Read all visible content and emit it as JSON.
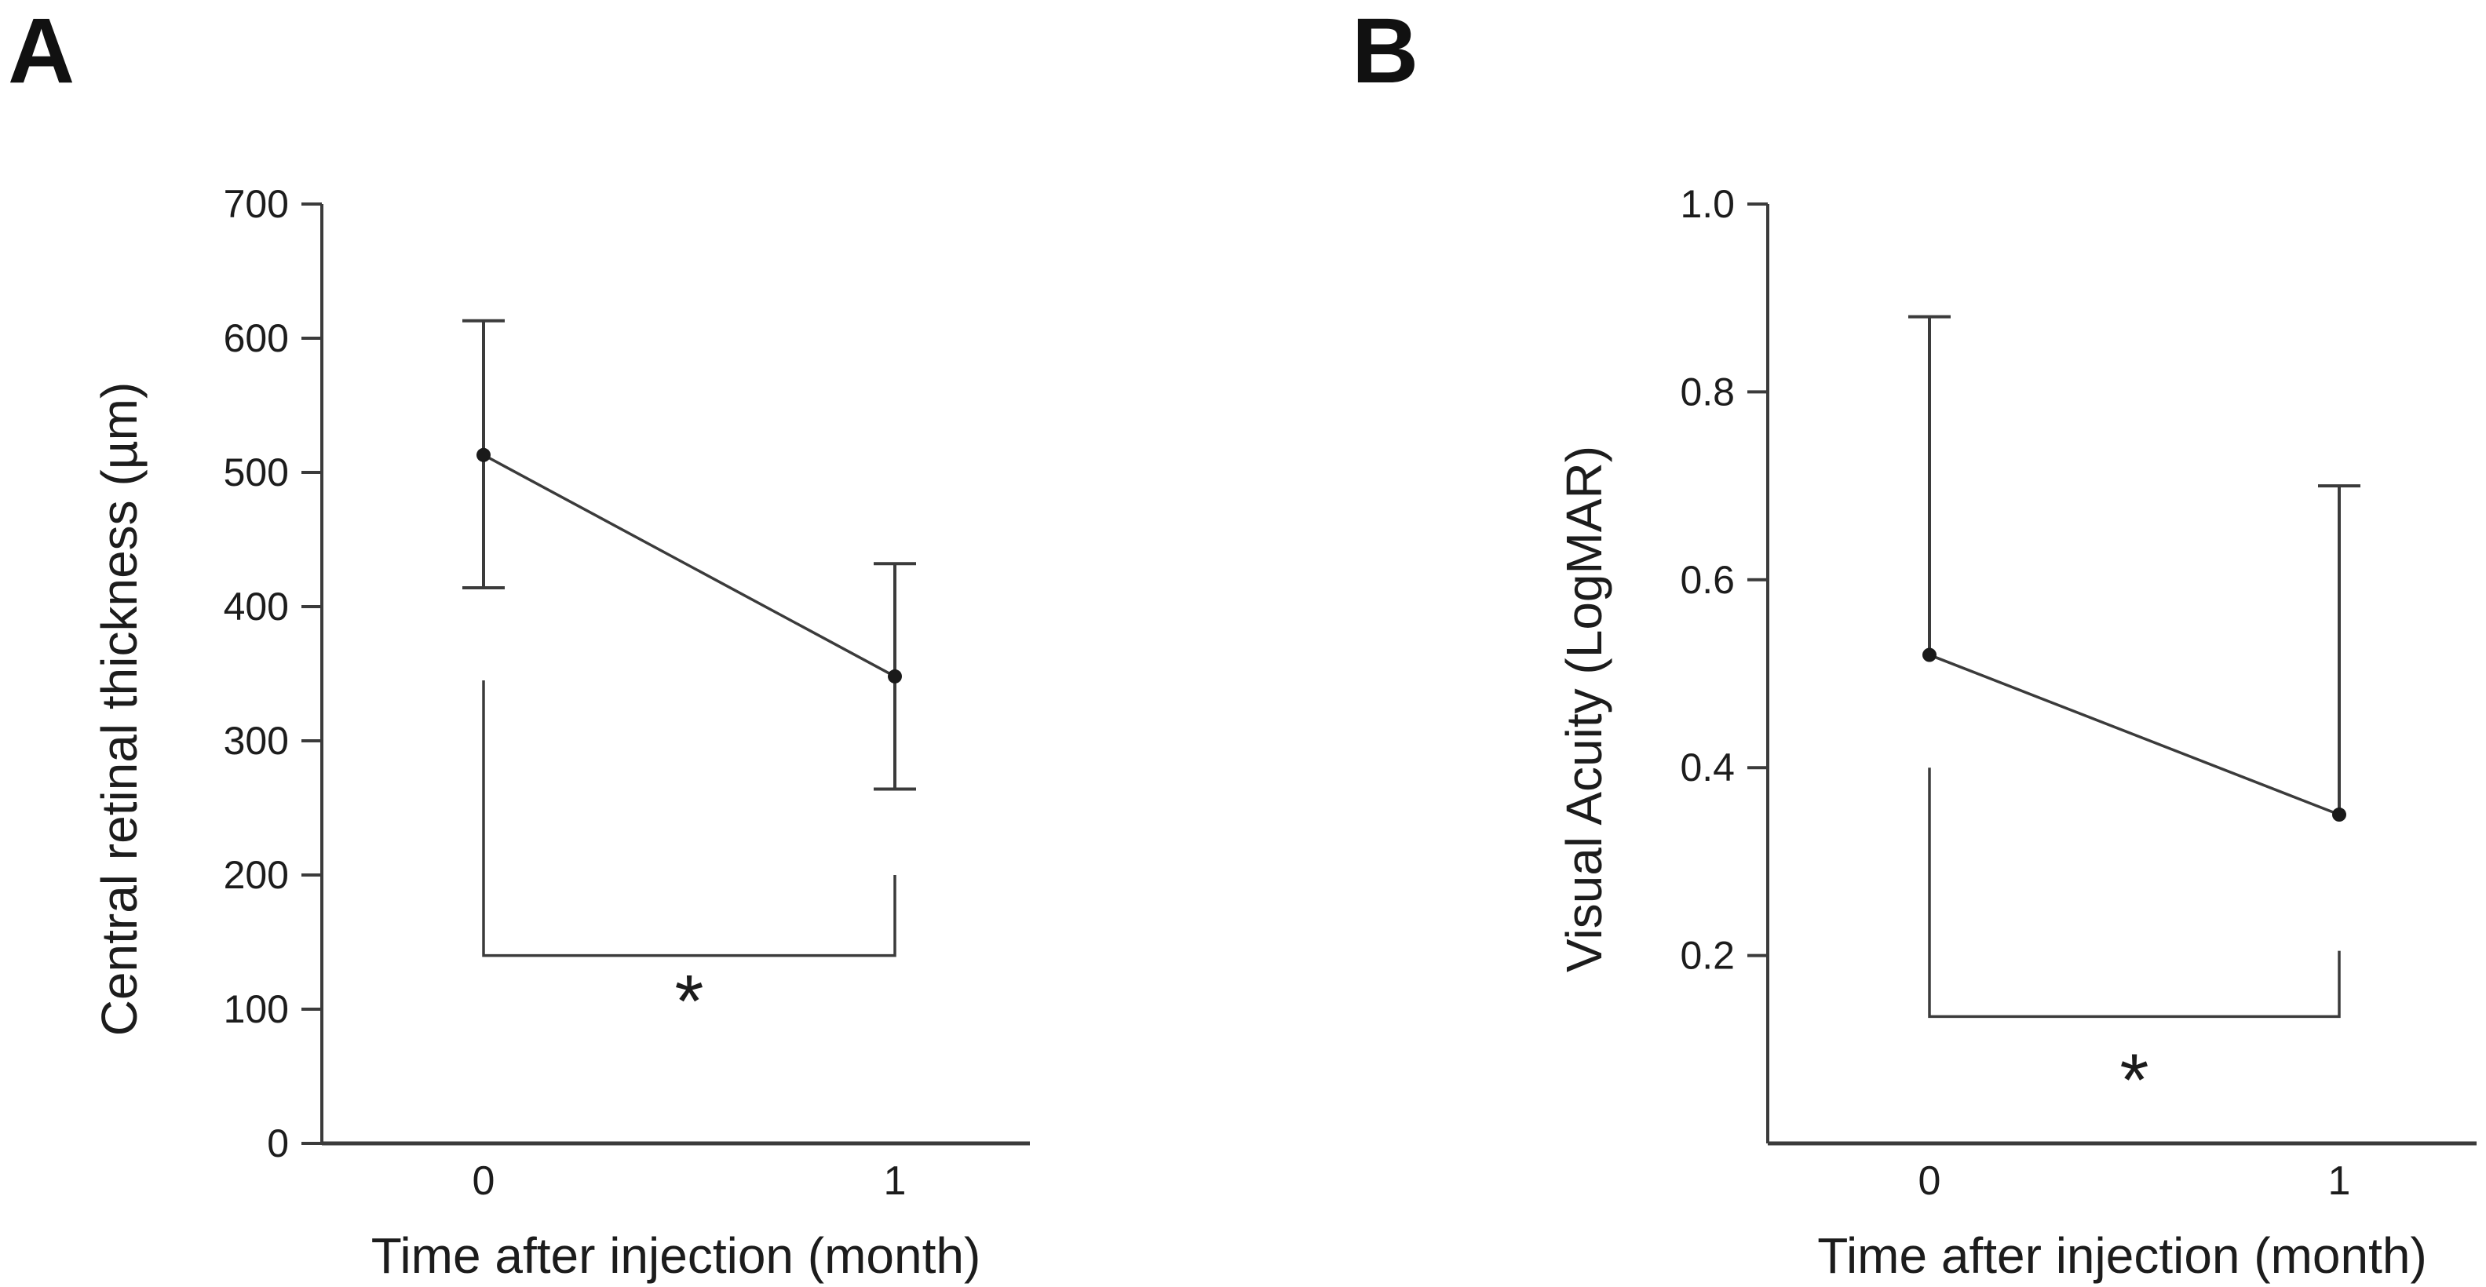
{
  "figure": {
    "background": "#ffffff",
    "line_color": "#3b3b3b",
    "text_color": "#1c1c1c"
  },
  "chart_data": [
    {
      "panel": "A",
      "type": "line",
      "title": "",
      "xlabel": "Time after injection (month)",
      "ylabel": "Central retinal thickness (µm)",
      "x_categories": [
        "0",
        "1"
      ],
      "x_values": [
        0,
        1
      ],
      "ylim": [
        0,
        700
      ],
      "yticks": [
        0,
        100,
        200,
        300,
        400,
        500,
        600,
        700
      ],
      "ytick_labels": [
        "0",
        "100",
        "200",
        "300",
        "400",
        "500",
        "600",
        "700"
      ],
      "grid": false,
      "legend": null,
      "series": [
        {
          "name": "mean with error bars",
          "means": [
            513,
            348
          ],
          "upper": [
            613,
            432
          ],
          "lower": [
            414,
            264
          ]
        }
      ],
      "significance": {
        "symbol": "*",
        "bar_value": 140,
        "left_arm_top_value": 345,
        "right_arm_top_value": 200,
        "symbol_value": 115
      }
    },
    {
      "panel": "B",
      "type": "line",
      "title": "",
      "xlabel": "Time after injection (month)",
      "ylabel": "Visual Acuity (LogMAR)",
      "x_categories": [
        "0",
        "1"
      ],
      "x_values": [
        0,
        1
      ],
      "ylim": [
        0,
        1.0
      ],
      "yticks": [
        0.2,
        0.4,
        0.6,
        0.8,
        1.0
      ],
      "ytick_labels": [
        "0.2",
        "0.4",
        "0.6",
        "0.8",
        "1.0"
      ],
      "grid": false,
      "legend": null,
      "series": [
        {
          "name": "mean with upper error bars",
          "means": [
            0.52,
            0.35
          ],
          "upper": [
            0.88,
            0.7
          ],
          "lower": [
            null,
            null
          ]
        }
      ],
      "significance": {
        "symbol": "*",
        "bar_value": 0.135,
        "left_arm_top_value": 0.4,
        "right_arm_top_value": 0.205,
        "symbol_value": 0.08
      }
    }
  ]
}
